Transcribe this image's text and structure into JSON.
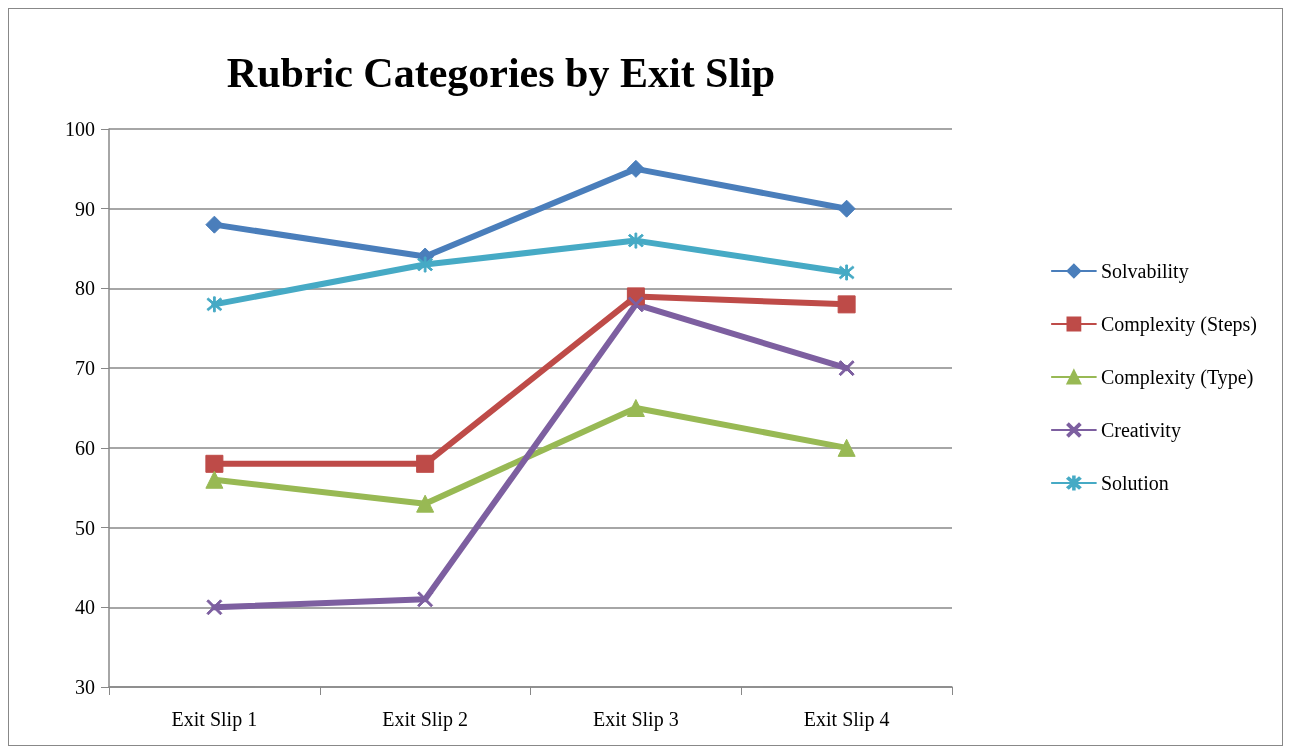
{
  "chart_data": {
    "type": "line",
    "title": "Rubric Categories by Exit Slip",
    "categories": [
      "Exit Slip 1",
      "Exit Slip 2",
      "Exit Slip 3",
      "Exit Slip 4"
    ],
    "series": [
      {
        "name": "Solvability",
        "color": "#4a7ebb",
        "marker": "diamond",
        "values": [
          88,
          84,
          95,
          90
        ]
      },
      {
        "name": "Complexity (Steps)",
        "color": "#be4b48",
        "marker": "square",
        "values": [
          58,
          58,
          79,
          78
        ]
      },
      {
        "name": "Complexity (Type)",
        "color": "#98b954",
        "marker": "triangle",
        "values": [
          56,
          53,
          65,
          60
        ]
      },
      {
        "name": "Creativity",
        "color": "#7d5fa0",
        "marker": "cross",
        "values": [
          40,
          41,
          78,
          70
        ]
      },
      {
        "name": "Solution",
        "color": "#46aac5",
        "marker": "star",
        "values": [
          78,
          83,
          86,
          82
        ]
      }
    ],
    "ylim": [
      30,
      100
    ],
    "yticks": [
      30,
      40,
      50,
      60,
      70,
      80,
      90,
      100
    ],
    "grid": "y",
    "legend": "right",
    "line_style": "solid"
  }
}
